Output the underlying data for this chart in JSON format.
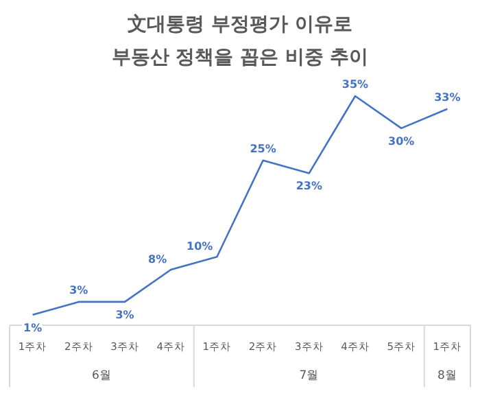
{
  "chart_data": {
    "type": "line",
    "title": "文대통령 부정평가 이유로\n부동산 정책을 꼽은 비중 추이",
    "categories": [
      "1주차",
      "2주차",
      "3주차",
      "4주차",
      "1주차",
      "2주차",
      "3주차",
      "4주차",
      "5주차",
      "1주차"
    ],
    "series": [
      {
        "color": "#4472c4",
        "values": [
          1,
          3,
          3,
          8,
          10,
          25,
          23,
          35,
          30,
          33
        ],
        "value_labels": [
          "1%",
          "3%",
          "3%",
          "8%",
          "10%",
          "25%",
          "23%",
          "35%",
          "30%",
          "33%"
        ]
      }
    ],
    "annotations": [
      "6월",
      "7월",
      "8월"
    ],
    "line_style": "solid"
  }
}
